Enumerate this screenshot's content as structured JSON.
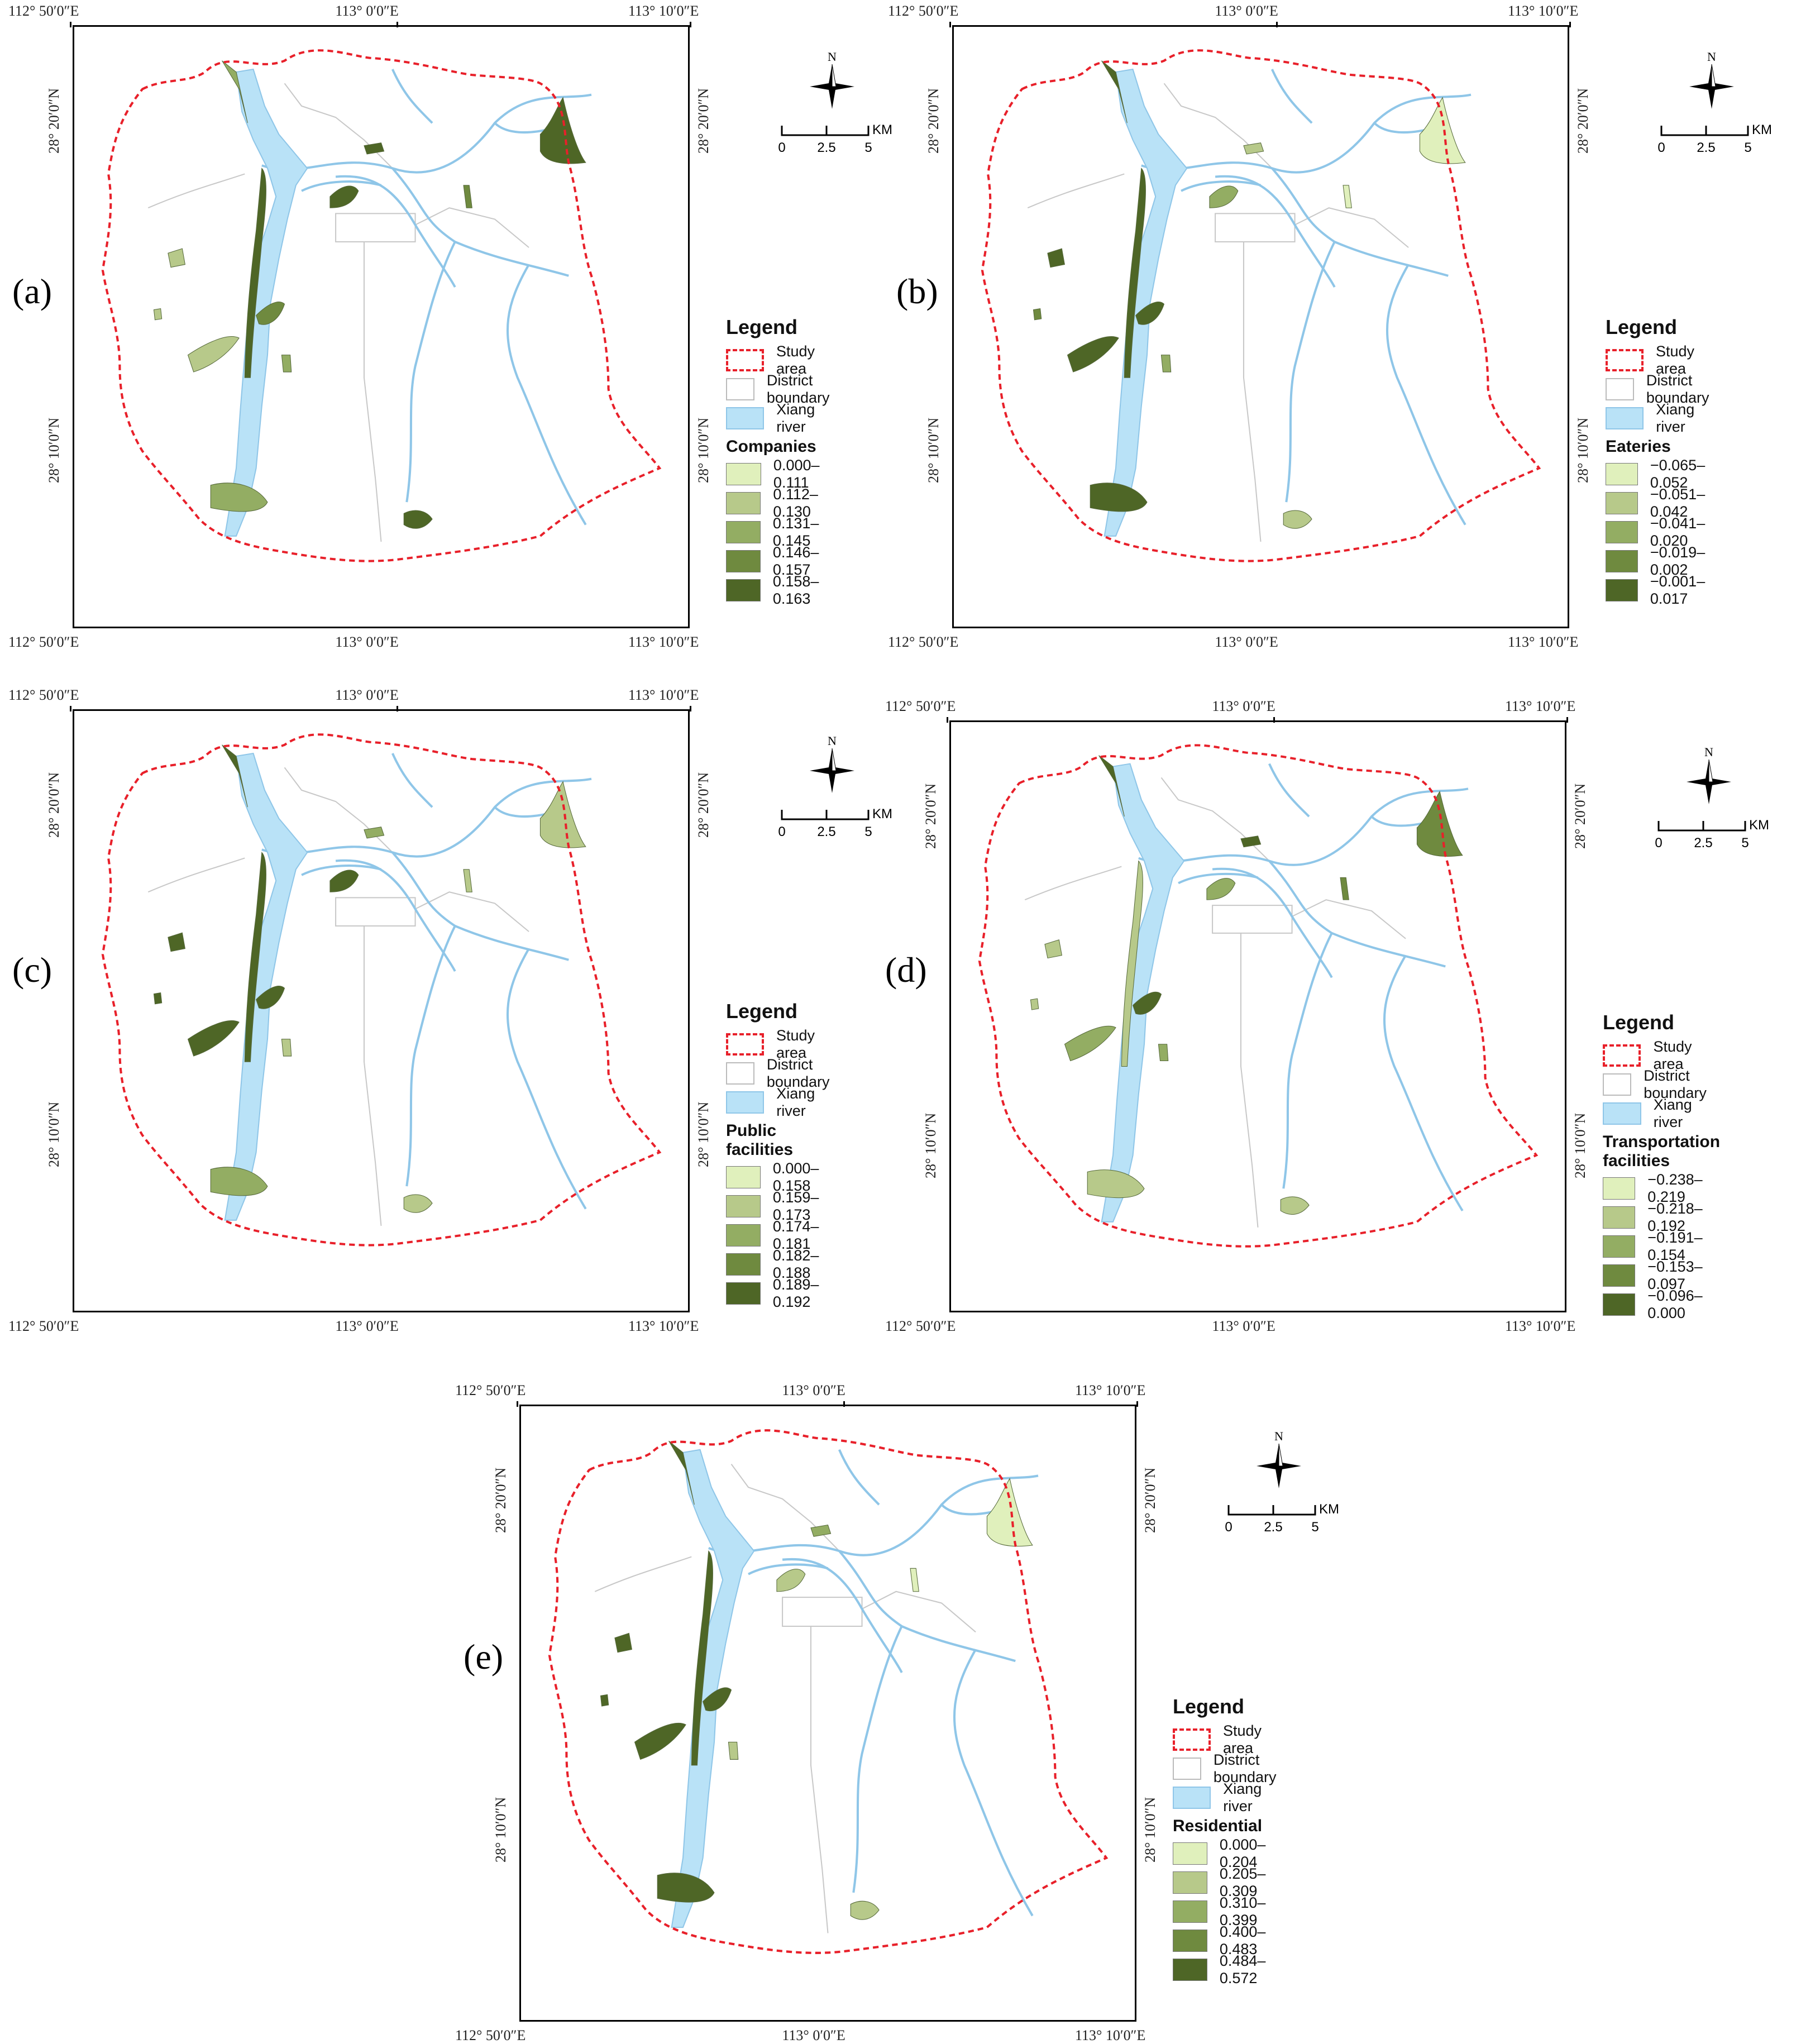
{
  "palette": [
    "#e0f0bc",
    "#b7c98a",
    "#93ad63",
    "#6f8a3f",
    "#4e6626"
  ],
  "colors": {
    "study_area": "#e8202a",
    "river": "#b9e2f7",
    "river_line": "#8fc6e8",
    "district": "#c8c8c8"
  },
  "coords": {
    "top": [
      "112° 50′0″E",
      "113° 0′0″E",
      "113° 10′0″E"
    ],
    "bottom": [
      "112° 50′0″E",
      "113° 0′0″E",
      "113° 10′0″E"
    ],
    "left": [
      "28° 20′0″N",
      "28° 10′0″N"
    ],
    "right": [
      "28° 20′0″N",
      "28° 10′0″N"
    ]
  },
  "compass": {
    "north": "N",
    "icon": "north-arrow-icon"
  },
  "scale": {
    "unit": "KM",
    "ticks": [
      "0",
      "2.5",
      "5"
    ]
  },
  "legend": {
    "title": "Legend",
    "study_area": "Study area",
    "district_boundary": "District boundary",
    "river": "Xiang river"
  },
  "panels": [
    {
      "label": "(a)",
      "variable": "Companies",
      "classes": [
        "0.000–0.111",
        "0.112–0.130",
        "0.131–0.145",
        "0.146–0.157",
        "0.158–0.163"
      ]
    },
    {
      "label": "(b)",
      "variable": "Eateries",
      "classes": [
        "−0.065–0.052",
        "−0.051–0.042",
        "−0.041–0.020",
        "−0.019–0.002",
        "−0.001–0.017"
      ]
    },
    {
      "label": "(c)",
      "variable": "Public facilities",
      "classes": [
        "0.000–0.158",
        "0.159–0.173",
        "0.174–0.181",
        "0.182–0.188",
        "0.189–0.192"
      ]
    },
    {
      "label": "(d)",
      "variable": "Transportation facilities",
      "classes": [
        "−0.238–0.219",
        "−0.218–0.192",
        "−0.191–0.154",
        "−0.153–0.097",
        "−0.096–0.000"
      ]
    },
    {
      "label": "(e)",
      "variable": "Residential",
      "classes": [
        "0.000–0.204",
        "0.205–0.309",
        "0.310–0.399",
        "0.400–0.483",
        "0.484–0.572"
      ]
    }
  ]
}
